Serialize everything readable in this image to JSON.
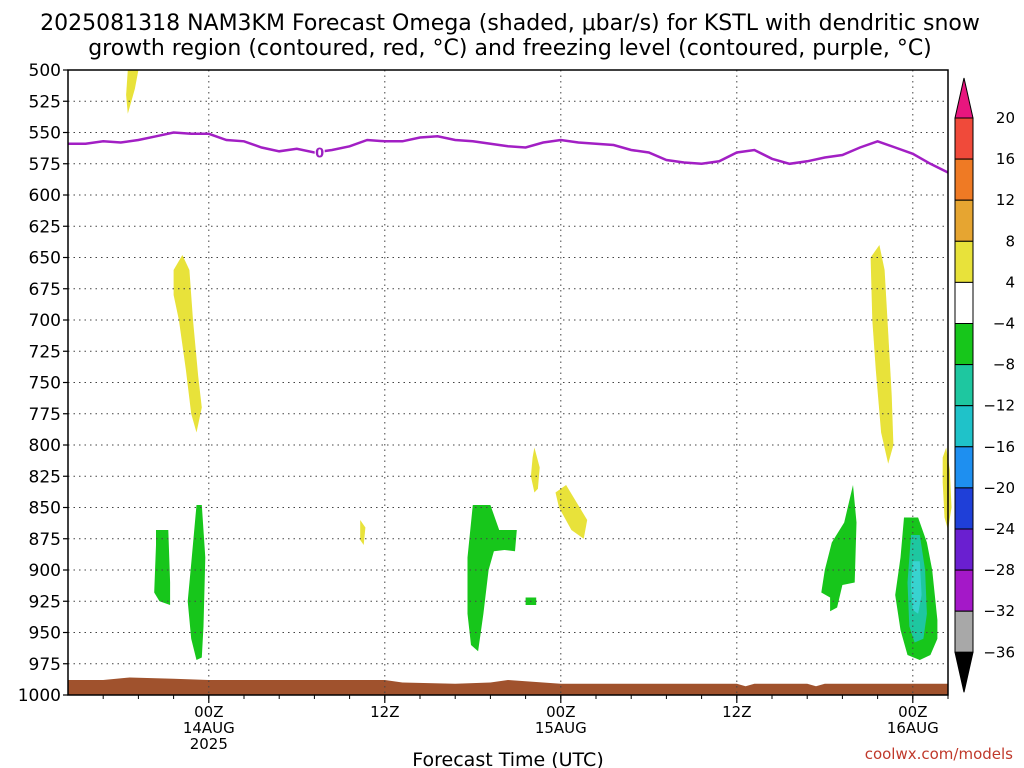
{
  "title_line1": "2025081318 NAM3KM Forecast Omega (shaded, μbar/s) for KSTL with dendritic snow",
  "title_line2": "growth region (contoured, red, °C) and freezing level (contoured, purple, °C)",
  "xlabel": "Forecast Time (UTC)",
  "credit": "coolwx.com/models",
  "colors": {
    "freezing_line": "#a21fc4",
    "ground": "#a0522d",
    "yellow": "#e8e23a",
    "green": "#17c61b",
    "teal": "#1ec7a0",
    "cyan": "#38d3d0",
    "grid": "#444444"
  },
  "chart_data": {
    "type": "heatmap",
    "title": "2025081318 NAM3KM Forecast Omega (shaded, μbar/s) for KSTL with dendritic snow growth region (contoured, red, °C) and freezing level (contoured, purple, °C)",
    "xlabel": "Forecast Time (UTC)",
    "ylabel": "",
    "x_units": "forecast hour (hours after 2025-08-13 18Z)",
    "xlim": [
      -2,
      48
    ],
    "ylim": [
      1000,
      500
    ],
    "y_ticks": [
      500,
      525,
      550,
      575,
      600,
      625,
      650,
      675,
      700,
      725,
      750,
      775,
      800,
      825,
      850,
      875,
      900,
      925,
      950,
      975,
      1000
    ],
    "x_ticks": [
      {
        "x": 6,
        "lines": [
          "00Z",
          "14AUG",
          "2025"
        ]
      },
      {
        "x": 16,
        "lines": [
          "12Z"
        ]
      },
      {
        "x": 26,
        "lines": [
          "00Z",
          "15AUG"
        ]
      },
      {
        "x": 36,
        "lines": [
          "12Z"
        ]
      },
      {
        "x": 46,
        "lines": [
          "00Z",
          "16AUG"
        ]
      }
    ],
    "grid": true,
    "colorbar": {
      "ticks": [
        20,
        16,
        12,
        8,
        4,
        -4,
        -8,
        -12,
        -16,
        -20,
        -24,
        -28,
        -32,
        -36
      ],
      "bins": [
        {
          "from": 20,
          "to": 24,
          "color": "#e8167e"
        },
        {
          "from": 16,
          "to": 20,
          "color": "#f04a3a"
        },
        {
          "from": 12,
          "to": 16,
          "color": "#ef7a24"
        },
        {
          "from": 8,
          "to": 12,
          "color": "#e6a531"
        },
        {
          "from": 4,
          "to": 8,
          "color": "#e8e23a"
        },
        {
          "from": -4,
          "to": 4,
          "color": "#ffffff"
        },
        {
          "from": -8,
          "to": -4,
          "color": "#17c61b"
        },
        {
          "from": -12,
          "to": -8,
          "color": "#1ec7a0"
        },
        {
          "from": -16,
          "to": -12,
          "color": "#1fc2c9"
        },
        {
          "from": -20,
          "to": -16,
          "color": "#1e8ff0"
        },
        {
          "from": -24,
          "to": -20,
          "color": "#1f3fd8"
        },
        {
          "from": -28,
          "to": -24,
          "color": "#6a1fd0"
        },
        {
          "from": -32,
          "to": -28,
          "color": "#a418c8"
        },
        {
          "from": -36,
          "to": -32,
          "color": "#a8a8a8"
        },
        {
          "from": -40,
          "to": -36,
          "color": "#000000"
        }
      ]
    },
    "freezing_level": {
      "label": "0",
      "points": [
        [
          -2,
          559
        ],
        [
          -1,
          559
        ],
        [
          0,
          557
        ],
        [
          1,
          558
        ],
        [
          2,
          556
        ],
        [
          3,
          553
        ],
        [
          4,
          550
        ],
        [
          5,
          551
        ],
        [
          6,
          551
        ],
        [
          7,
          556
        ],
        [
          8,
          557
        ],
        [
          9,
          562
        ],
        [
          10,
          565
        ],
        [
          11,
          563
        ],
        [
          12,
          566
        ],
        [
          13,
          564
        ],
        [
          14,
          561
        ],
        [
          15,
          556
        ],
        [
          16,
          557
        ],
        [
          17,
          557
        ],
        [
          18,
          554
        ],
        [
          19,
          553
        ],
        [
          20,
          556
        ],
        [
          21,
          557
        ],
        [
          22,
          559
        ],
        [
          23,
          561
        ],
        [
          24,
          562
        ],
        [
          25,
          558
        ],
        [
          26,
          556
        ],
        [
          27,
          558
        ],
        [
          28,
          559
        ],
        [
          29,
          560
        ],
        [
          30,
          564
        ],
        [
          31,
          566
        ],
        [
          32,
          572
        ],
        [
          33,
          574
        ],
        [
          34,
          575
        ],
        [
          35,
          573
        ],
        [
          36,
          566
        ],
        [
          37,
          564
        ],
        [
          38,
          571
        ],
        [
          39,
          575
        ],
        [
          40,
          573
        ],
        [
          41,
          570
        ],
        [
          42,
          568
        ],
        [
          43,
          562
        ],
        [
          44,
          557
        ],
        [
          45,
          562
        ],
        [
          46,
          567
        ],
        [
          47,
          575
        ],
        [
          48,
          582
        ]
      ]
    },
    "regions": [
      {
        "category": "4 to 8",
        "color": "yellow",
        "polygon": [
          [
            1.4,
            500
          ],
          [
            2.0,
            500
          ],
          [
            1.8,
            515
          ],
          [
            1.5,
            530
          ],
          [
            1.4,
            535
          ],
          [
            1.3,
            520
          ]
        ]
      },
      {
        "category": "4 to 8",
        "color": "yellow",
        "polygon": [
          [
            4.0,
            660
          ],
          [
            4.5,
            648
          ],
          [
            4.9,
            660
          ],
          [
            5.1,
            700
          ],
          [
            5.4,
            745
          ],
          [
            5.6,
            770
          ],
          [
            5.3,
            790
          ],
          [
            5.0,
            775
          ],
          [
            4.7,
            740
          ],
          [
            4.3,
            700
          ],
          [
            4.0,
            680
          ]
        ]
      },
      {
        "category": "4 to 8",
        "color": "yellow",
        "polygon": [
          [
            24.4,
            810
          ],
          [
            24.5,
            802
          ],
          [
            24.8,
            818
          ],
          [
            24.7,
            835
          ],
          [
            24.5,
            838
          ],
          [
            24.3,
            825
          ]
        ]
      },
      {
        "category": "4 to 8",
        "color": "yellow",
        "polygon": [
          [
            25.7,
            838
          ],
          [
            26.3,
            832
          ],
          [
            27.5,
            860
          ],
          [
            27.3,
            875
          ],
          [
            26.6,
            868
          ],
          [
            25.9,
            850
          ]
        ]
      },
      {
        "category": "4 to 8",
        "color": "yellow",
        "polygon": [
          [
            14.6,
            860
          ],
          [
            14.9,
            866
          ],
          [
            14.8,
            880
          ],
          [
            14.6,
            876
          ]
        ]
      },
      {
        "category": "4 to 8",
        "color": "yellow",
        "polygon": [
          [
            43.6,
            650
          ],
          [
            44.1,
            640
          ],
          [
            44.4,
            660
          ],
          [
            44.6,
            710
          ],
          [
            44.8,
            760
          ],
          [
            44.9,
            800
          ],
          [
            44.6,
            815
          ],
          [
            44.2,
            790
          ],
          [
            43.9,
            740
          ],
          [
            43.7,
            700
          ]
        ]
      },
      {
        "category": "4 to 8",
        "color": "yellow",
        "polygon": [
          [
            47.7,
            810
          ],
          [
            47.9,
            802
          ],
          [
            48.1,
            820
          ],
          [
            48.2,
            850
          ],
          [
            48.0,
            868
          ],
          [
            47.8,
            858
          ],
          [
            47.7,
            830
          ]
        ]
      },
      {
        "category": "-4 to -8",
        "color": "green",
        "polygon": [
          [
            3.0,
            868
          ],
          [
            3.7,
            868
          ],
          [
            3.8,
            910
          ],
          [
            3.8,
            928
          ],
          [
            3.2,
            925
          ],
          [
            2.9,
            918
          ],
          [
            3.0,
            880
          ]
        ]
      },
      {
        "category": "-4 to -8",
        "color": "green",
        "polygon": [
          [
            5.3,
            848
          ],
          [
            5.6,
            848
          ],
          [
            5.8,
            890
          ],
          [
            5.7,
            945
          ],
          [
            5.6,
            970
          ],
          [
            5.3,
            972
          ],
          [
            5.0,
            955
          ],
          [
            4.8,
            925
          ],
          [
            5.0,
            895
          ]
        ]
      },
      {
        "category": "-4 to -8",
        "color": "green",
        "polygon": [
          [
            21.0,
            848
          ],
          [
            22.0,
            848
          ],
          [
            22.5,
            868
          ],
          [
            23.5,
            868
          ],
          [
            23.4,
            885
          ],
          [
            22.8,
            884
          ],
          [
            22.2,
            885
          ],
          [
            21.9,
            900
          ],
          [
            21.6,
            935
          ],
          [
            21.3,
            965
          ],
          [
            20.9,
            960
          ],
          [
            20.7,
            935
          ],
          [
            20.7,
            890
          ]
        ]
      },
      {
        "category": "-4 to -8",
        "color": "green",
        "polygon": [
          [
            24.0,
            922
          ],
          [
            24.6,
            922
          ],
          [
            24.6,
            928
          ],
          [
            24.0,
            928
          ]
        ]
      },
      {
        "category": "-4 to -8",
        "color": "green",
        "polygon": [
          [
            41.4,
            878
          ],
          [
            42.1,
            862
          ],
          [
            42.6,
            832
          ],
          [
            42.8,
            862
          ],
          [
            42.7,
            910
          ],
          [
            42.0,
            912
          ],
          [
            41.7,
            930
          ],
          [
            41.3,
            933
          ],
          [
            41.3,
            922
          ],
          [
            40.8,
            918
          ],
          [
            41.0,
            900
          ]
        ]
      },
      {
        "category": "-4 to -8",
        "color": "green",
        "polygon": [
          [
            45.5,
            858
          ],
          [
            46.3,
            858
          ],
          [
            46.8,
            878
          ],
          [
            47.1,
            900
          ],
          [
            47.4,
            940
          ],
          [
            47.4,
            955
          ],
          [
            47.0,
            968
          ],
          [
            46.4,
            972
          ],
          [
            45.7,
            968
          ],
          [
            45.3,
            948
          ],
          [
            45.0,
            920
          ],
          [
            45.3,
            890
          ]
        ]
      },
      {
        "category": "-8 to -12",
        "color": "teal",
        "polygon": [
          [
            45.9,
            872
          ],
          [
            46.4,
            872
          ],
          [
            46.7,
            900
          ],
          [
            46.8,
            935
          ],
          [
            46.6,
            955
          ],
          [
            46.1,
            958
          ],
          [
            45.8,
            945
          ],
          [
            45.7,
            910
          ]
        ]
      },
      {
        "category": "-12 to -16",
        "color": "cyan",
        "polygon": [
          [
            46.0,
            893
          ],
          [
            46.4,
            893
          ],
          [
            46.5,
            920
          ],
          [
            46.3,
            935
          ],
          [
            46.0,
            932
          ],
          [
            45.9,
            912
          ]
        ]
      }
    ],
    "ground": [
      [
        -2,
        988
      ],
      [
        0,
        988
      ],
      [
        1.5,
        986
      ],
      [
        4,
        987
      ],
      [
        6,
        988
      ],
      [
        8,
        988
      ],
      [
        10,
        988
      ],
      [
        12,
        988
      ],
      [
        14,
        988
      ],
      [
        16,
        988
      ],
      [
        17,
        990
      ],
      [
        20,
        991
      ],
      [
        22,
        990
      ],
      [
        23,
        988
      ],
      [
        24,
        989
      ],
      [
        26,
        991
      ],
      [
        36,
        991
      ],
      [
        36.5,
        993
      ],
      [
        37,
        991
      ],
      [
        40,
        991
      ],
      [
        40.5,
        993
      ],
      [
        41,
        991
      ],
      [
        48,
        991
      ]
    ]
  }
}
